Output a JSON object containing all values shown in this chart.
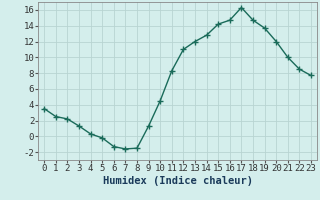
{
  "x": [
    0,
    1,
    2,
    3,
    4,
    5,
    6,
    7,
    8,
    9,
    10,
    11,
    12,
    13,
    14,
    15,
    16,
    17,
    18,
    19,
    20,
    21,
    22,
    23
  ],
  "y": [
    3.5,
    2.5,
    2.2,
    1.3,
    0.3,
    -0.2,
    -1.3,
    -1.6,
    -1.5,
    1.3,
    4.5,
    8.3,
    11.0,
    12.0,
    12.8,
    14.2,
    14.7,
    16.3,
    14.7,
    13.7,
    12.0,
    10.0,
    8.5,
    7.7
  ],
  "line_color": "#1a6b5a",
  "marker": "+",
  "marker_size": 4,
  "bg_color": "#d4eeec",
  "grid_color": "#b8d4d2",
  "xlabel": "Humidex (Indice chaleur)",
  "ylim": [
    -3,
    17
  ],
  "yticks": [
    -2,
    0,
    2,
    4,
    6,
    8,
    10,
    12,
    14,
    16
  ],
  "xticks": [
    0,
    1,
    2,
    3,
    4,
    5,
    6,
    7,
    8,
    9,
    10,
    11,
    12,
    13,
    14,
    15,
    16,
    17,
    18,
    19,
    20,
    21,
    22,
    23
  ],
  "xlabel_fontsize": 7.5,
  "tick_fontsize": 6.5,
  "line_width": 1.0,
  "marker_edge_width": 1.0
}
